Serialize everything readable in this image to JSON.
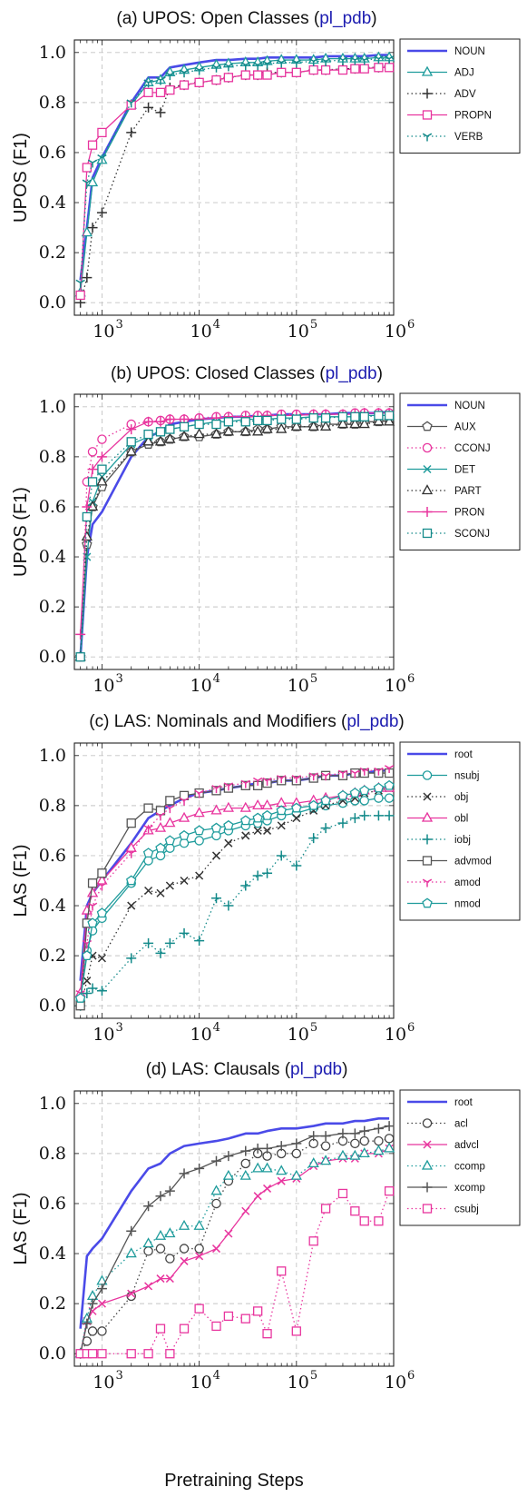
{
  "xlabel": "Pretraining Steps",
  "x": [
    600,
    700,
    800,
    1000,
    2000,
    3000,
    4000,
    5000,
    7000,
    10000,
    15000,
    20000,
    30000,
    40000,
    50000,
    70000,
    100000,
    150000,
    200000,
    300000,
    400000,
    500000,
    700000,
    900000
  ],
  "chart_data": [
    {
      "type": "line",
      "title_prefix": "(a) UPOS: Open Classes (",
      "title_link": "pl_pdb",
      "title_suffix": ")",
      "ylabel": "UPOS (F1)",
      "xscale": "log",
      "xlim": [
        520,
        1000000
      ],
      "ylim": [
        -0.05,
        1.05
      ],
      "yticks": [
        "0.0",
        "0.2",
        "0.4",
        "0.6",
        "0.8",
        "1.0"
      ],
      "xticks": [
        {
          "base": "10",
          "exp": "3"
        },
        {
          "base": "10",
          "exp": "4"
        },
        {
          "base": "10",
          "exp": "5"
        },
        {
          "base": "10",
          "exp": "6"
        }
      ],
      "grid": true,
      "legend_position": "right-top",
      "series": [
        {
          "name": "NOUN",
          "color": "#4a4ae8",
          "style": "solid",
          "marker": "none",
          "values": [
            0.09,
            0.3,
            0.5,
            0.58,
            0.8,
            0.9,
            0.9,
            0.94,
            0.95,
            0.96,
            0.97,
            0.97,
            0.975,
            0.975,
            0.98,
            0.98,
            0.98,
            0.98,
            0.985,
            0.985,
            0.985,
            0.985,
            0.99,
            0.99
          ]
        },
        {
          "name": "ADJ",
          "color": "#1f9c9c",
          "style": "solid",
          "marker": "triangle",
          "values": [
            0.04,
            0.28,
            0.48,
            0.57,
            0.79,
            0.88,
            0.89,
            0.92,
            0.93,
            0.94,
            0.95,
            0.955,
            0.96,
            0.96,
            0.965,
            0.97,
            0.97,
            0.97,
            0.975,
            0.975,
            0.975,
            0.975,
            0.98,
            0.98
          ]
        },
        {
          "name": "ADV",
          "color": "#333333",
          "style": "dotted",
          "marker": "plus",
          "values": [
            0.0,
            0.1,
            0.3,
            0.36,
            0.68,
            0.78,
            0.76,
            0.86,
            0.87,
            0.88,
            0.89,
            0.9,
            0.91,
            0.91,
            0.92,
            0.92,
            0.92,
            0.93,
            0.93,
            0.935,
            0.935,
            0.94,
            0.94,
            0.945
          ]
        },
        {
          "name": "PROPN",
          "color": "#e8359e",
          "style": "solid",
          "marker": "square",
          "values": [
            0.03,
            0.54,
            0.63,
            0.68,
            0.79,
            0.84,
            0.84,
            0.85,
            0.87,
            0.88,
            0.89,
            0.9,
            0.91,
            0.91,
            0.91,
            0.92,
            0.92,
            0.93,
            0.93,
            0.93,
            0.935,
            0.935,
            0.94,
            0.94
          ]
        },
        {
          "name": "VERB",
          "color": "#138a8a",
          "style": "dotted",
          "marker": "tri-down",
          "values": [
            0.08,
            0.48,
            0.56,
            0.58,
            0.8,
            0.88,
            0.89,
            0.91,
            0.92,
            0.93,
            0.94,
            0.945,
            0.95,
            0.95,
            0.955,
            0.96,
            0.96,
            0.965,
            0.965,
            0.97,
            0.97,
            0.97,
            0.975,
            0.975
          ]
        }
      ]
    },
    {
      "type": "line",
      "title_prefix": "(b) UPOS: Closed Classes (",
      "title_link": "pl_pdb",
      "title_suffix": ")",
      "ylabel": "UPOS (F1)",
      "xscale": "log",
      "xlim": [
        520,
        1000000
      ],
      "ylim": [
        -0.05,
        1.05
      ],
      "yticks": [
        "0.0",
        "0.2",
        "0.4",
        "0.6",
        "0.8",
        "1.0"
      ],
      "xticks": [
        {
          "base": "10",
          "exp": "3"
        },
        {
          "base": "10",
          "exp": "4"
        },
        {
          "base": "10",
          "exp": "5"
        },
        {
          "base": "10",
          "exp": "6"
        }
      ],
      "grid": true,
      "legend_position": "right-top",
      "series": [
        {
          "name": "NOUN",
          "color": "#4a4ae8",
          "style": "solid",
          "marker": "none",
          "values": [
            0.0,
            0.4,
            0.53,
            0.58,
            0.8,
            0.88,
            0.9,
            0.93,
            0.94,
            0.95,
            0.955,
            0.96,
            0.96,
            0.965,
            0.965,
            0.97,
            0.97,
            0.97,
            0.97,
            0.975,
            0.975,
            0.975,
            0.975,
            0.98
          ]
        },
        {
          "name": "AUX",
          "color": "#555555",
          "style": "solid",
          "marker": "pentagon",
          "values": [
            0.0,
            0.45,
            0.6,
            0.68,
            0.82,
            0.85,
            0.86,
            0.87,
            0.88,
            0.88,
            0.89,
            0.9,
            0.9,
            0.91,
            0.91,
            0.92,
            0.92,
            0.92,
            0.93,
            0.93,
            0.93,
            0.94,
            0.94,
            0.945
          ]
        },
        {
          "name": "CCONJ",
          "color": "#e8359e",
          "style": "dotted",
          "marker": "circle",
          "values": [
            0.0,
            0.7,
            0.82,
            0.87,
            0.93,
            0.94,
            0.945,
            0.95,
            0.95,
            0.955,
            0.96,
            0.96,
            0.965,
            0.965,
            0.965,
            0.97,
            0.97,
            0.97,
            0.97,
            0.97,
            0.975,
            0.975,
            0.975,
            0.975
          ]
        },
        {
          "name": "DET",
          "color": "#1f9c9c",
          "style": "solid",
          "marker": "x",
          "values": [
            0.0,
            0.4,
            0.62,
            0.72,
            0.85,
            0.88,
            0.9,
            0.91,
            0.92,
            0.93,
            0.94,
            0.94,
            0.95,
            0.95,
            0.95,
            0.955,
            0.955,
            0.96,
            0.96,
            0.96,
            0.96,
            0.965,
            0.965,
            0.965
          ]
        },
        {
          "name": "PART",
          "color": "#333333",
          "style": "dotted",
          "marker": "triangle",
          "values": [
            0.0,
            0.48,
            0.6,
            0.7,
            0.82,
            0.86,
            0.86,
            0.87,
            0.88,
            0.89,
            0.89,
            0.9,
            0.9,
            0.9,
            0.91,
            0.91,
            0.92,
            0.92,
            0.92,
            0.93,
            0.93,
            0.93,
            0.94,
            0.94
          ]
        },
        {
          "name": "PRON",
          "color": "#e8359e",
          "style": "solid",
          "marker": "plus",
          "values": [
            0.09,
            0.6,
            0.75,
            0.8,
            0.91,
            0.94,
            0.94,
            0.95,
            0.95,
            0.95,
            0.955,
            0.96,
            0.96,
            0.96,
            0.965,
            0.965,
            0.965,
            0.97,
            0.97,
            0.97,
            0.97,
            0.975,
            0.975,
            0.975
          ]
        },
        {
          "name": "SCONJ",
          "color": "#138a8a",
          "style": "dotted",
          "marker": "square",
          "values": [
            0.0,
            0.56,
            0.7,
            0.75,
            0.86,
            0.89,
            0.9,
            0.91,
            0.92,
            0.93,
            0.93,
            0.94,
            0.94,
            0.945,
            0.945,
            0.95,
            0.95,
            0.955,
            0.955,
            0.96,
            0.96,
            0.96,
            0.965,
            0.965
          ]
        }
      ]
    },
    {
      "type": "line",
      "title_prefix": "(c) LAS: Nominals and Modifiers (",
      "title_link": "pl_pdb",
      "title_suffix": ")",
      "ylabel": "LAS (F1)",
      "xscale": "log",
      "xlim": [
        520,
        1000000
      ],
      "ylim": [
        -0.05,
        1.05
      ],
      "yticks": [
        "0.0",
        "0.2",
        "0.4",
        "0.6",
        "0.8",
        "1.0"
      ],
      "xticks": [
        {
          "base": "10",
          "exp": "3"
        },
        {
          "base": "10",
          "exp": "4"
        },
        {
          "base": "10",
          "exp": "5"
        },
        {
          "base": "10",
          "exp": "6"
        }
      ],
      "grid": true,
      "legend_position": "right-top",
      "series": [
        {
          "name": "root",
          "color": "#4a4ae8",
          "style": "solid",
          "marker": "none",
          "values": [
            0.1,
            0.4,
            0.45,
            0.5,
            0.65,
            0.75,
            0.78,
            0.8,
            0.83,
            0.85,
            0.86,
            0.87,
            0.88,
            0.89,
            0.89,
            0.9,
            0.9,
            0.91,
            0.92,
            0.92,
            0.93,
            0.93,
            0.94,
            0.94
          ]
        },
        {
          "name": "nsubj",
          "color": "#1f9c9c",
          "style": "solid",
          "marker": "circle",
          "values": [
            0.02,
            0.22,
            0.3,
            0.35,
            0.49,
            0.58,
            0.6,
            0.63,
            0.65,
            0.66,
            0.68,
            0.7,
            0.72,
            0.73,
            0.74,
            0.76,
            0.77,
            0.79,
            0.8,
            0.81,
            0.82,
            0.82,
            0.83,
            0.83
          ]
        },
        {
          "name": "obj",
          "color": "#333333",
          "style": "dotted",
          "marker": "x",
          "values": [
            0.0,
            0.1,
            0.2,
            0.19,
            0.4,
            0.46,
            0.45,
            0.48,
            0.5,
            0.52,
            0.6,
            0.65,
            0.68,
            0.7,
            0.7,
            0.72,
            0.75,
            0.78,
            0.8,
            0.82,
            0.83,
            0.85,
            0.86,
            0.87
          ]
        },
        {
          "name": "obl",
          "color": "#e8359e",
          "style": "solid",
          "marker": "triangle",
          "values": [
            0.05,
            0.38,
            0.45,
            0.5,
            0.63,
            0.7,
            0.71,
            0.73,
            0.75,
            0.77,
            0.78,
            0.79,
            0.79,
            0.8,
            0.8,
            0.81,
            0.81,
            0.82,
            0.83,
            0.84,
            0.85,
            0.86,
            0.87,
            0.87
          ]
        },
        {
          "name": "iobj",
          "color": "#138a8a",
          "style": "dotted",
          "marker": "plus",
          "values": [
            0.0,
            0.05,
            0.07,
            0.06,
            0.19,
            0.25,
            0.21,
            0.25,
            0.29,
            0.26,
            0.43,
            0.4,
            0.48,
            0.52,
            0.53,
            0.6,
            0.56,
            0.67,
            0.71,
            0.73,
            0.75,
            0.76,
            0.76,
            0.76
          ]
        },
        {
          "name": "advmod",
          "color": "#555555",
          "style": "solid",
          "marker": "square",
          "values": [
            0.0,
            0.33,
            0.49,
            0.53,
            0.73,
            0.79,
            0.78,
            0.82,
            0.84,
            0.85,
            0.86,
            0.87,
            0.88,
            0.88,
            0.89,
            0.9,
            0.9,
            0.91,
            0.92,
            0.92,
            0.93,
            0.93,
            0.93,
            0.93
          ]
        },
        {
          "name": "amod",
          "color": "#e8359e",
          "style": "dotted",
          "marker": "tri-down",
          "values": [
            0.05,
            0.25,
            0.4,
            0.48,
            0.61,
            0.71,
            0.76,
            0.79,
            0.82,
            0.85,
            0.87,
            0.88,
            0.89,
            0.9,
            0.9,
            0.91,
            0.91,
            0.92,
            0.92,
            0.93,
            0.93,
            0.94,
            0.94,
            0.95
          ]
        },
        {
          "name": "nmod",
          "color": "#1f9c9c",
          "style": "solid",
          "marker": "pentagon",
          "values": [
            0.03,
            0.2,
            0.33,
            0.37,
            0.5,
            0.61,
            0.63,
            0.66,
            0.68,
            0.7,
            0.71,
            0.72,
            0.74,
            0.75,
            0.76,
            0.78,
            0.79,
            0.8,
            0.82,
            0.84,
            0.85,
            0.86,
            0.87,
            0.88
          ]
        }
      ]
    },
    {
      "type": "line",
      "title_prefix": "(d) LAS: Clausals (",
      "title_link": "pl_pdb",
      "title_suffix": ")",
      "ylabel": "LAS (F1)",
      "xscale": "log",
      "xlim": [
        520,
        1000000
      ],
      "ylim": [
        -0.05,
        1.05
      ],
      "yticks": [
        "0.0",
        "0.2",
        "0.4",
        "0.6",
        "0.8",
        "1.0"
      ],
      "xticks": [
        {
          "base": "10",
          "exp": "3"
        },
        {
          "base": "10",
          "exp": "4"
        },
        {
          "base": "10",
          "exp": "5"
        },
        {
          "base": "10",
          "exp": "6"
        }
      ],
      "grid": true,
      "legend_position": "right-top",
      "series": [
        {
          "name": "root",
          "color": "#4a4ae8",
          "style": "solid",
          "marker": "none",
          "values": [
            0.1,
            0.39,
            0.42,
            0.46,
            0.65,
            0.74,
            0.76,
            0.8,
            0.83,
            0.84,
            0.85,
            0.86,
            0.88,
            0.88,
            0.89,
            0.9,
            0.9,
            0.91,
            0.92,
            0.92,
            0.93,
            0.93,
            0.94,
            0.94
          ]
        },
        {
          "name": "acl",
          "color": "#444444",
          "style": "dotted",
          "marker": "circle",
          "values": [
            0.0,
            0.05,
            0.09,
            0.09,
            0.23,
            0.41,
            0.42,
            0.38,
            0.42,
            0.42,
            0.6,
            0.69,
            0.76,
            0.8,
            0.79,
            0.8,
            0.8,
            0.84,
            0.83,
            0.85,
            0.84,
            0.85,
            0.85,
            0.86
          ]
        },
        {
          "name": "advcl",
          "color": "#e8359e",
          "style": "solid",
          "marker": "x",
          "values": [
            0.0,
            0.13,
            0.17,
            0.2,
            0.24,
            0.27,
            0.3,
            0.3,
            0.37,
            0.39,
            0.42,
            0.48,
            0.57,
            0.63,
            0.66,
            0.69,
            0.7,
            0.75,
            0.77,
            0.78,
            0.78,
            0.8,
            0.8,
            0.82
          ]
        },
        {
          "name": "ccomp",
          "color": "#1f9c9c",
          "style": "dotted",
          "marker": "triangle",
          "values": [
            0.0,
            0.14,
            0.23,
            0.29,
            0.4,
            0.44,
            0.47,
            0.48,
            0.51,
            0.51,
            0.65,
            0.71,
            0.71,
            0.74,
            0.74,
            0.73,
            0.71,
            0.76,
            0.77,
            0.79,
            0.79,
            0.8,
            0.81,
            0.82
          ]
        },
        {
          "name": "xcomp",
          "color": "#555555",
          "style": "solid",
          "marker": "plus",
          "values": [
            0.0,
            0.12,
            0.2,
            0.26,
            0.49,
            0.59,
            0.63,
            0.65,
            0.72,
            0.74,
            0.77,
            0.79,
            0.81,
            0.82,
            0.82,
            0.83,
            0.84,
            0.87,
            0.87,
            0.88,
            0.88,
            0.89,
            0.9,
            0.91
          ]
        },
        {
          "name": "csubj",
          "color": "#e8359e",
          "style": "dotted",
          "marker": "square",
          "values": [
            0.0,
            0.0,
            0.0,
            0.0,
            0.0,
            0.0,
            0.1,
            0.0,
            0.1,
            0.18,
            0.11,
            0.15,
            0.14,
            0.17,
            0.08,
            0.33,
            0.09,
            0.45,
            0.58,
            0.64,
            0.57,
            0.53,
            0.53,
            0.65
          ]
        }
      ]
    }
  ]
}
